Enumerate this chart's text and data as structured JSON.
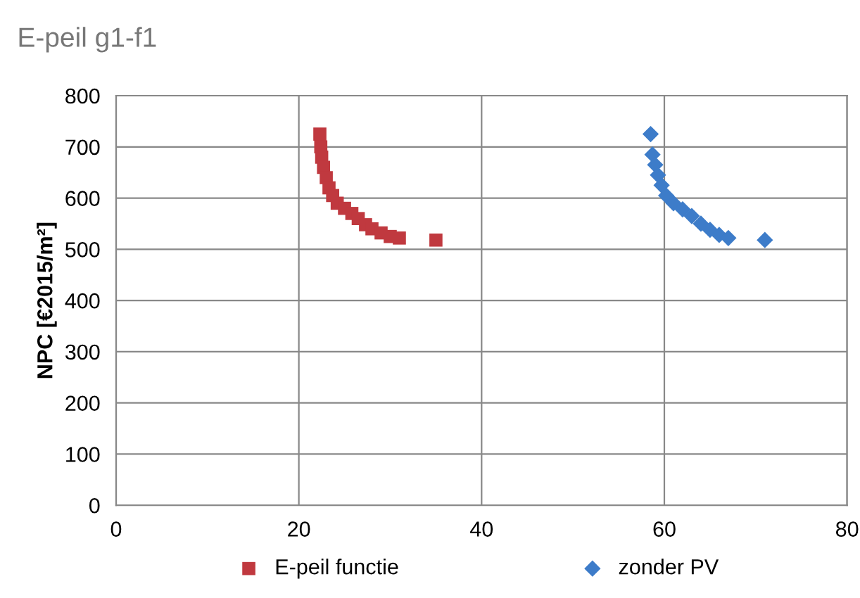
{
  "chart_data": {
    "type": "scatter",
    "title": "E-peil g1-f1",
    "ylabel": "NPC [€2015/m²]",
    "xlim": [
      0,
      80
    ],
    "xticks": [
      0,
      20,
      40,
      60,
      80
    ],
    "ylim": [
      0,
      800
    ],
    "yticks": [
      0,
      100,
      200,
      300,
      400,
      500,
      600,
      700,
      800
    ],
    "grid": true,
    "legend": "bottom",
    "series": [
      {
        "name": "E-peil functie",
        "color": "#c0393f",
        "marker": "square",
        "x": [
          22.3,
          22.4,
          22.5,
          22.7,
          23,
          23.3,
          23.7,
          24.2,
          25,
          25.8,
          26.5,
          27.3,
          28,
          29,
          30,
          31,
          35
        ],
        "values": [
          725,
          700,
          680,
          660,
          640,
          620,
          605,
          590,
          580,
          570,
          560,
          548,
          540,
          532,
          525,
          522,
          518
        ]
      },
      {
        "name": "zonder PV",
        "color": "#3d7cc9",
        "marker": "diamond",
        "x": [
          58.5,
          58.7,
          59,
          59.3,
          59.7,
          60.2,
          61,
          62,
          63,
          64,
          65,
          66,
          67,
          71
        ],
        "values": [
          725,
          685,
          665,
          645,
          625,
          605,
          590,
          578,
          565,
          550,
          538,
          528,
          522,
          518
        ]
      }
    ]
  }
}
